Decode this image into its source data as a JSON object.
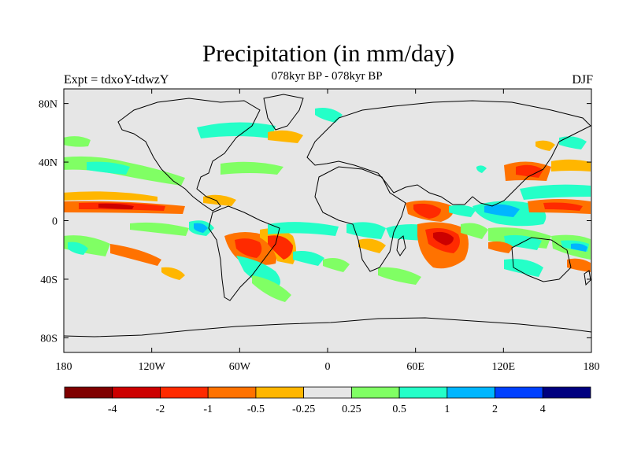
{
  "title": "Precipitation (in mm/day)",
  "subtitle": "078kyr BP - 078kyr BP",
  "experiment": "Expt = tdxoY-tdwzY",
  "season": "DJF",
  "map": {
    "background_color": "#e6e6e6",
    "lat_labels": [
      "80N",
      "40N",
      "0",
      "40S",
      "80S"
    ],
    "lon_labels": [
      "180",
      "120W",
      "60W",
      "0",
      "60E",
      "120E",
      "180"
    ],
    "lat_values": [
      80,
      40,
      0,
      -40,
      -80
    ],
    "lon_values": [
      -180,
      -120,
      -60,
      0,
      60,
      120,
      180
    ]
  },
  "colorbar": {
    "colors": [
      "#7f0000",
      "#cc0000",
      "#ff2a00",
      "#ff7200",
      "#ffb600",
      "#e6e6e6",
      "#80ff64",
      "#24ffc8",
      "#00b6ff",
      "#0040ff",
      "#00007f"
    ],
    "labels": [
      "-4",
      "-2",
      "-1",
      "-0.5",
      "-0.25",
      "0.25",
      "0.5",
      "1",
      "2",
      "4"
    ]
  }
}
